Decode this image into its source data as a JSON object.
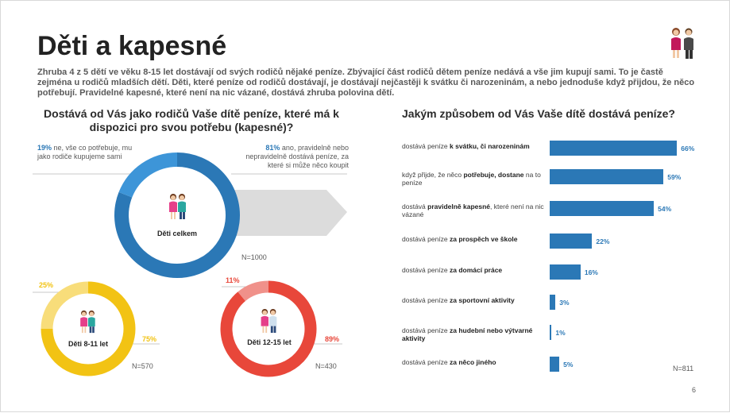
{
  "title": "Děti a kapesné",
  "intro": "Zhruba 4 z 5 dětí ve věku 8-15 let dostávají od svých rodičů nějaké peníze. Zbývající část rodičů dětem peníze nedává a vše jim kupují sami. To je častě zejména u rodičů mladších dětí. Děti, které peníze od rodičů dostávají, je dostávají nejčastěji k svátku či narozeninám, a nebo jednoduše když přijdou, že něco potřebují. Pravidelné kapesné, které není na nic vázané, dostává zhruba polovina dětí.",
  "left_question": "Dostává od Vás jako rodičů Vaše dítě peníze, které má k dispozici pro svou potřebu (kapesné)?",
  "right_question": "Jakým způsobem od Vás Vaše dítě dostává peníze?",
  "page_number": "6",
  "colors": {
    "blue": "#2b78b6",
    "light_blue": "#3d95d8",
    "yellow": "#f2c314",
    "light_yellow": "#f8dd7a",
    "red": "#e8473a",
    "light_red": "#f0918a",
    "arrow": "#dcdcdc"
  },
  "annotations": {
    "no_pct": "19%",
    "no_text": " ne, vše co potřebuje, mu jako rodiče kupujeme sami",
    "yes_pct": "81%",
    "yes_text": " ano, pravidelně nebo nepravidelně dostává peníze, za které si může něco koupit"
  },
  "chart_data": [
    {
      "type": "pie",
      "variant": "donut",
      "label": "Děti celkem",
      "n": "N=1000",
      "slices": [
        {
          "name": "ano",
          "value": 81
        },
        {
          "name": "ne",
          "value": 19
        }
      ]
    },
    {
      "type": "pie",
      "variant": "donut",
      "label": "Děti 8-11 let",
      "n": "N=570",
      "slices": [
        {
          "name": "ano",
          "value": 75,
          "label": "75%"
        },
        {
          "name": "ne",
          "value": 25,
          "label": "25%"
        }
      ]
    },
    {
      "type": "pie",
      "variant": "donut",
      "label": "Děti 12-15 let",
      "n": "N=430",
      "slices": [
        {
          "name": "ano",
          "value": 89,
          "label": "89%"
        },
        {
          "name": "ne",
          "value": 11,
          "label": "11%"
        }
      ]
    },
    {
      "type": "bar",
      "orientation": "horizontal",
      "n": "N=811",
      "categories": [
        {
          "pre": "dostává peníze ",
          "bold": "k svátku, či narozeninám",
          "post": ""
        },
        {
          "pre": "když přijde, že něco ",
          "bold": "potřebuje, dostane",
          "post": " na to peníze"
        },
        {
          "pre": "dostává ",
          "bold": "pravidelně kapesné",
          "post": ", které není na nic vázané"
        },
        {
          "pre": "dostává peníze ",
          "bold": "za prospěch ve škole",
          "post": ""
        },
        {
          "pre": "dostává peníze ",
          "bold": "za domácí práce",
          "post": ""
        },
        {
          "pre": "dostává peníze ",
          "bold": "za sportovní aktivity",
          "post": ""
        },
        {
          "pre": "dostává peníze ",
          "bold": "za hudební nebo výtvarné aktivity",
          "post": ""
        },
        {
          "pre": "dostává peníze ",
          "bold": "za něco jiného",
          "post": ""
        }
      ],
      "values": [
        66,
        59,
        54,
        22,
        16,
        3,
        1,
        5
      ],
      "value_labels": [
        "66%",
        "59%",
        "54%",
        "22%",
        "16%",
        "3%",
        "1%",
        "5%"
      ],
      "xlim": [
        0,
        70
      ]
    }
  ]
}
